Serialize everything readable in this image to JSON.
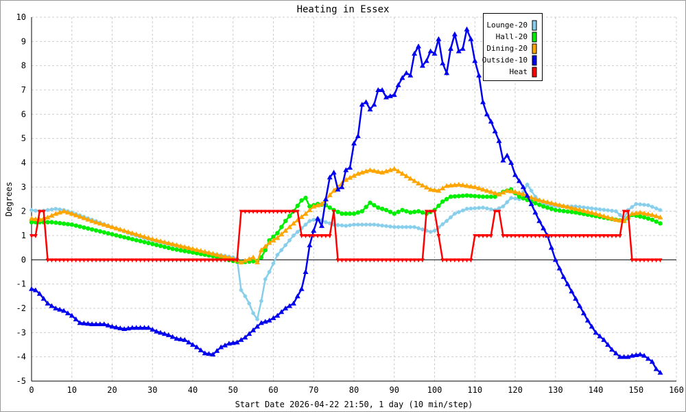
{
  "chart_data": {
    "type": "line",
    "title": "Heating in Essex",
    "xlabel": "Start Date 2026-04-22 21:50, 1 day (10 min/step)",
    "ylabel": "Degrees",
    "xlim": [
      0,
      160
    ],
    "ylim": [
      -5,
      10
    ],
    "xticks": [
      0,
      10,
      20,
      30,
      40,
      50,
      60,
      70,
      80,
      90,
      100,
      110,
      120,
      130,
      140,
      150,
      160
    ],
    "yticks": [
      -5,
      -4,
      -3,
      -2,
      -1,
      0,
      1,
      2,
      3,
      4,
      5,
      6,
      7,
      8,
      9,
      10
    ],
    "grid": true,
    "legend_position": "top-right",
    "series": [
      {
        "name": "Lounge-20",
        "color": "#87ceeb",
        "marker": "star",
        "points": [
          [
            0,
            2.05
          ],
          [
            2,
            2.0
          ],
          [
            4,
            2.05
          ],
          [
            6,
            2.1
          ],
          [
            8,
            2.05
          ],
          [
            10,
            1.95
          ],
          [
            15,
            1.65
          ],
          [
            20,
            1.35
          ],
          [
            25,
            1.05
          ],
          [
            30,
            0.8
          ],
          [
            35,
            0.6
          ],
          [
            40,
            0.4
          ],
          [
            45,
            0.25
          ],
          [
            50,
            0.1
          ],
          [
            51,
            0.05
          ],
          [
            52,
            -1.25
          ],
          [
            53,
            -1.5
          ],
          [
            54,
            -1.8
          ],
          [
            55,
            -2.2
          ],
          [
            56,
            -2.45
          ],
          [
            57,
            -1.7
          ],
          [
            58,
            -0.8
          ],
          [
            59,
            -0.5
          ],
          [
            61,
            0.2
          ],
          [
            63,
            0.6
          ],
          [
            65,
            1.0
          ],
          [
            67,
            1.3
          ],
          [
            69,
            1.6
          ],
          [
            71,
            1.7
          ],
          [
            73,
            1.55
          ],
          [
            75,
            1.45
          ],
          [
            78,
            1.4
          ],
          [
            80,
            1.45
          ],
          [
            85,
            1.45
          ],
          [
            90,
            1.35
          ],
          [
            95,
            1.35
          ],
          [
            97,
            1.25
          ],
          [
            99,
            1.15
          ],
          [
            100,
            1.2
          ],
          [
            103,
            1.6
          ],
          [
            105,
            1.9
          ],
          [
            108,
            2.1
          ],
          [
            112,
            2.15
          ],
          [
            115,
            2.05
          ],
          [
            117,
            2.2
          ],
          [
            119,
            2.55
          ],
          [
            121,
            2.5
          ],
          [
            123,
            3.1
          ],
          [
            125,
            2.6
          ],
          [
            127,
            2.3
          ],
          [
            130,
            2.2
          ],
          [
            135,
            2.2
          ],
          [
            140,
            2.1
          ],
          [
            145,
            2.0
          ],
          [
            147,
            1.7
          ],
          [
            148,
            2.05
          ],
          [
            150,
            2.3
          ],
          [
            153,
            2.25
          ],
          [
            156,
            2.05
          ]
        ]
      },
      {
        "name": "Hall-20",
        "color": "#00ee00",
        "marker": "circle",
        "points": [
          [
            0,
            1.55
          ],
          [
            5,
            1.55
          ],
          [
            10,
            1.45
          ],
          [
            15,
            1.25
          ],
          [
            20,
            1.05
          ],
          [
            25,
            0.85
          ],
          [
            30,
            0.65
          ],
          [
            35,
            0.45
          ],
          [
            40,
            0.3
          ],
          [
            45,
            0.15
          ],
          [
            50,
            -0.05
          ],
          [
            52,
            -0.1
          ],
          [
            56,
            -0.05
          ],
          [
            57,
            0.1
          ],
          [
            58,
            0.4
          ],
          [
            59,
            0.8
          ],
          [
            61,
            1.1
          ],
          [
            63,
            1.6
          ],
          [
            65,
            2.0
          ],
          [
            67,
            2.45
          ],
          [
            68,
            2.55
          ],
          [
            69,
            2.2
          ],
          [
            71,
            2.3
          ],
          [
            73,
            2.25
          ],
          [
            75,
            2.05
          ],
          [
            77,
            1.9
          ],
          [
            80,
            1.9
          ],
          [
            82,
            2.0
          ],
          [
            84,
            2.35
          ],
          [
            86,
            2.15
          ],
          [
            88,
            2.05
          ],
          [
            90,
            1.9
          ],
          [
            92,
            2.05
          ],
          [
            94,
            1.95
          ],
          [
            96,
            2.0
          ],
          [
            98,
            1.9
          ],
          [
            100,
            2.05
          ],
          [
            102,
            2.4
          ],
          [
            104,
            2.6
          ],
          [
            108,
            2.65
          ],
          [
            112,
            2.6
          ],
          [
            115,
            2.6
          ],
          [
            117,
            2.8
          ],
          [
            119,
            2.9
          ],
          [
            121,
            2.6
          ],
          [
            124,
            2.4
          ],
          [
            127,
            2.2
          ],
          [
            130,
            2.05
          ],
          [
            135,
            1.95
          ],
          [
            140,
            1.8
          ],
          [
            145,
            1.65
          ],
          [
            147,
            1.6
          ],
          [
            149,
            1.85
          ],
          [
            152,
            1.75
          ],
          [
            154,
            1.65
          ],
          [
            156,
            1.5
          ]
        ]
      },
      {
        "name": "Dining-20",
        "color": "#ffa500",
        "marker": "triangle-up",
        "points": [
          [
            0,
            1.7
          ],
          [
            2,
            1.65
          ],
          [
            4,
            1.75
          ],
          [
            6,
            1.9
          ],
          [
            8,
            2.0
          ],
          [
            10,
            1.9
          ],
          [
            15,
            1.6
          ],
          [
            20,
            1.35
          ],
          [
            25,
            1.1
          ],
          [
            30,
            0.85
          ],
          [
            35,
            0.65
          ],
          [
            40,
            0.45
          ],
          [
            45,
            0.25
          ],
          [
            50,
            0.05
          ],
          [
            52,
            -0.1
          ],
          [
            55,
            0.1
          ],
          [
            56,
            -0.1
          ],
          [
            57,
            0.4
          ],
          [
            59,
            0.7
          ],
          [
            61,
            0.9
          ],
          [
            63,
            1.2
          ],
          [
            65,
            1.5
          ],
          [
            68,
            1.9
          ],
          [
            70,
            2.2
          ],
          [
            72,
            2.3
          ],
          [
            75,
            2.85
          ],
          [
            78,
            3.3
          ],
          [
            81,
            3.55
          ],
          [
            84,
            3.7
          ],
          [
            87,
            3.6
          ],
          [
            90,
            3.75
          ],
          [
            93,
            3.45
          ],
          [
            96,
            3.15
          ],
          [
            99,
            2.9
          ],
          [
            101,
            2.85
          ],
          [
            103,
            3.05
          ],
          [
            106,
            3.1
          ],
          [
            110,
            3.0
          ],
          [
            113,
            2.85
          ],
          [
            116,
            2.7
          ],
          [
            118,
            2.85
          ],
          [
            120,
            2.8
          ],
          [
            122,
            2.7
          ],
          [
            125,
            2.5
          ],
          [
            130,
            2.3
          ],
          [
            135,
            2.1
          ],
          [
            140,
            1.9
          ],
          [
            145,
            1.65
          ],
          [
            147,
            1.6
          ],
          [
            149,
            1.9
          ],
          [
            151,
            1.95
          ],
          [
            154,
            1.85
          ],
          [
            156,
            1.75
          ]
        ]
      },
      {
        "name": "Outside-10",
        "color": "#0000ee",
        "marker": "triangle-up",
        "points": [
          [
            0,
            -1.2
          ],
          [
            1,
            -1.25
          ],
          [
            2,
            -1.4
          ],
          [
            3,
            -1.6
          ],
          [
            4,
            -1.8
          ],
          [
            6,
            -2.0
          ],
          [
            8,
            -2.1
          ],
          [
            10,
            -2.3
          ],
          [
            12,
            -2.6
          ],
          [
            15,
            -2.65
          ],
          [
            18,
            -2.65
          ],
          [
            20,
            -2.75
          ],
          [
            23,
            -2.85
          ],
          [
            25,
            -2.8
          ],
          [
            29,
            -2.8
          ],
          [
            31,
            -2.95
          ],
          [
            34,
            -3.1
          ],
          [
            36,
            -3.25
          ],
          [
            38,
            -3.3
          ],
          [
            41,
            -3.6
          ],
          [
            43,
            -3.85
          ],
          [
            45,
            -3.9
          ],
          [
            47,
            -3.6
          ],
          [
            49,
            -3.45
          ],
          [
            51,
            -3.4
          ],
          [
            53,
            -3.2
          ],
          [
            55,
            -2.9
          ],
          [
            57,
            -2.6
          ],
          [
            59,
            -2.5
          ],
          [
            61,
            -2.3
          ],
          [
            63,
            -2.0
          ],
          [
            65,
            -1.8
          ],
          [
            67,
            -1.2
          ],
          [
            68,
            -0.5
          ],
          [
            69,
            0.6
          ],
          [
            70,
            1.2
          ],
          [
            71,
            1.7
          ],
          [
            72,
            1.4
          ],
          [
            73,
            2.5
          ],
          [
            74,
            3.4
          ],
          [
            75,
            3.6
          ],
          [
            76,
            2.9
          ],
          [
            77,
            3.0
          ],
          [
            78,
            3.7
          ],
          [
            79,
            3.8
          ],
          [
            80,
            4.8
          ],
          [
            81,
            5.1
          ],
          [
            82,
            6.4
          ],
          [
            83,
            6.5
          ],
          [
            84,
            6.2
          ],
          [
            85,
            6.4
          ],
          [
            86,
            7.0
          ],
          [
            87,
            7.0
          ],
          [
            88,
            6.7
          ],
          [
            90,
            6.8
          ],
          [
            91,
            7.2
          ],
          [
            92,
            7.5
          ],
          [
            93,
            7.7
          ],
          [
            94,
            7.6
          ],
          [
            95,
            8.5
          ],
          [
            96,
            8.8
          ],
          [
            97,
            8.0
          ],
          [
            98,
            8.2
          ],
          [
            99,
            8.6
          ],
          [
            100,
            8.5
          ],
          [
            101,
            9.1
          ],
          [
            102,
            8.1
          ],
          [
            103,
            7.7
          ],
          [
            104,
            8.7
          ],
          [
            105,
            9.3
          ],
          [
            106,
            8.6
          ],
          [
            107,
            8.7
          ],
          [
            108,
            9.5
          ],
          [
            109,
            9.1
          ],
          [
            110,
            8.2
          ],
          [
            111,
            7.6
          ],
          [
            112,
            6.5
          ],
          [
            113,
            6.0
          ],
          [
            114,
            5.7
          ],
          [
            115,
            5.3
          ],
          [
            116,
            4.9
          ],
          [
            117,
            4.1
          ],
          [
            118,
            4.3
          ],
          [
            119,
            4.0
          ],
          [
            120,
            3.5
          ],
          [
            122,
            3.0
          ],
          [
            124,
            2.3
          ],
          [
            126,
            1.6
          ],
          [
            128,
            1.0
          ],
          [
            130,
            0.0
          ],
          [
            132,
            -0.7
          ],
          [
            134,
            -1.3
          ],
          [
            136,
            -1.9
          ],
          [
            138,
            -2.5
          ],
          [
            140,
            -3.0
          ],
          [
            142,
            -3.3
          ],
          [
            144,
            -3.7
          ],
          [
            146,
            -4.0
          ],
          [
            148,
            -4.0
          ],
          [
            149,
            -3.95
          ],
          [
            151,
            -3.9
          ],
          [
            152,
            -3.95
          ],
          [
            154,
            -4.2
          ],
          [
            155,
            -4.5
          ],
          [
            156,
            -4.65
          ]
        ]
      },
      {
        "name": "Heat",
        "color": "#ff0000",
        "marker": "triangle-down",
        "points": [
          [
            0,
            1
          ],
          [
            1,
            1
          ],
          [
            2,
            2
          ],
          [
            3,
            2
          ],
          [
            4,
            0
          ],
          [
            51,
            0
          ],
          [
            52,
            2
          ],
          [
            66,
            2
          ],
          [
            67,
            1
          ],
          [
            74,
            1
          ],
          [
            75,
            2
          ],
          [
            76,
            0
          ],
          [
            97,
            0
          ],
          [
            98,
            2
          ],
          [
            100,
            2
          ],
          [
            102,
            0
          ],
          [
            109,
            0
          ],
          [
            110,
            1
          ],
          [
            114,
            1
          ],
          [
            115,
            2
          ],
          [
            116,
            2
          ],
          [
            117,
            1
          ],
          [
            146,
            1
          ],
          [
            147,
            2
          ],
          [
            148,
            2
          ],
          [
            149,
            0
          ],
          [
            156,
            0
          ]
        ]
      }
    ]
  }
}
